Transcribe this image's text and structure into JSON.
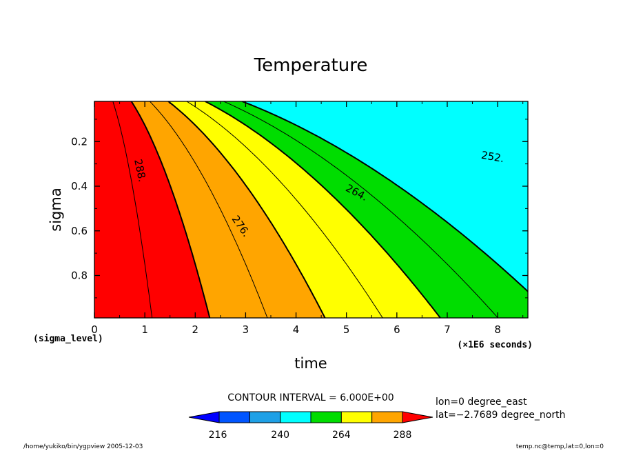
{
  "chart_data": {
    "type": "contour",
    "title": "Temperature",
    "xlabel": "time",
    "ylabel": "sigma",
    "x_unit_note": "(×1E6 seconds)",
    "y_unit_note": "(sigma_level)",
    "xlim": [
      0,
      8.6
    ],
    "ylim": [
      0.02,
      0.99
    ],
    "y_inverted": true,
    "x_ticks": [
      "0",
      "1",
      "2",
      "3",
      "4",
      "5",
      "6",
      "7",
      "8"
    ],
    "y_ticks": [
      "0.2",
      "0.4",
      "0.6",
      "0.8"
    ],
    "contour_interval_text": "CONTOUR INTERVAL = 6.000E+00",
    "contour_levels": [
      252,
      258,
      264,
      270,
      276,
      282,
      288,
      294
    ],
    "contour_labels": [
      {
        "text": "288.",
        "x": 0.9,
        "y": 0.33,
        "angle": 78
      },
      {
        "text": "276.",
        "x": 2.9,
        "y": 0.58,
        "angle": 55
      },
      {
        "text": "264.",
        "x": 5.2,
        "y": 0.43,
        "angle": 28
      },
      {
        "text": "252.",
        "x": 7.9,
        "y": 0.27,
        "angle": 10
      }
    ],
    "fill_bands": [
      {
        "range": "< 252",
        "color": "#00ffff"
      },
      {
        "range": "252-264",
        "color": "#00dd00"
      },
      {
        "range": "264-276",
        "color": "#ffff00"
      },
      {
        "range": "276-288",
        "color": "#ffa500"
      },
      {
        "range": ">= 288",
        "color": "#ff0000"
      }
    ],
    "colorbar": {
      "colors": [
        "#0000ff",
        "#0055ff",
        "#1ea0e6",
        "#00ffff",
        "#00dd00",
        "#ffff00",
        "#ffa500",
        "#ff0000"
      ],
      "tick_labels": [
        "216",
        "240",
        "264",
        "288"
      ]
    }
  },
  "info": {
    "lon": "lon=0 degree_east",
    "lat": "lat=−2.7689 degree_north",
    "path_date": "/home/yukiko/bin/ygpview  2005-12-03",
    "source": "temp.nc@temp,lat=0,lon=0"
  }
}
